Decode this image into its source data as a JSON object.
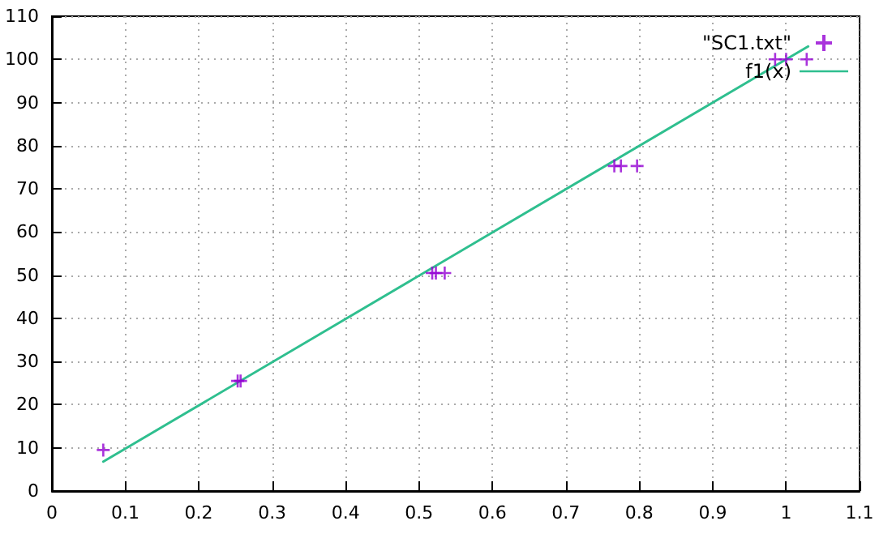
{
  "chart_data": {
    "type": "scatter",
    "xlim": [
      0,
      1.1
    ],
    "xticks": [
      0,
      0.1,
      0.2,
      0.3,
      0.4,
      0.5,
      0.6,
      0.7,
      0.8,
      0.9,
      1,
      1.1
    ],
    "ylim": [
      0,
      110
    ],
    "yticks": [
      0,
      10,
      20,
      30,
      40,
      50,
      60,
      70,
      80,
      90,
      100,
      110
    ],
    "grid": true,
    "legend": "top right",
    "series": [
      {
        "name": "\"SC1.txt\"",
        "color": "#9400d3",
        "marker": "cross",
        "x": [
          0.07,
          0.253,
          0.257,
          0.518,
          0.523,
          0.535,
          0.766,
          0.775,
          0.797,
          0.985,
          1.0,
          1.028
        ],
        "values": [
          9.5,
          25.5,
          25.5,
          50.5,
          50.5,
          50.5,
          75.3,
          75.3,
          75.3,
          100,
          100,
          100
        ]
      },
      {
        "name": "f1(x)",
        "type": "line",
        "color": "#2fbf8f",
        "marker": "none",
        "line_style": "solid",
        "x": [
          0.07,
          1.03
        ],
        "values": [
          6.8,
          103
        ]
      }
    ]
  }
}
